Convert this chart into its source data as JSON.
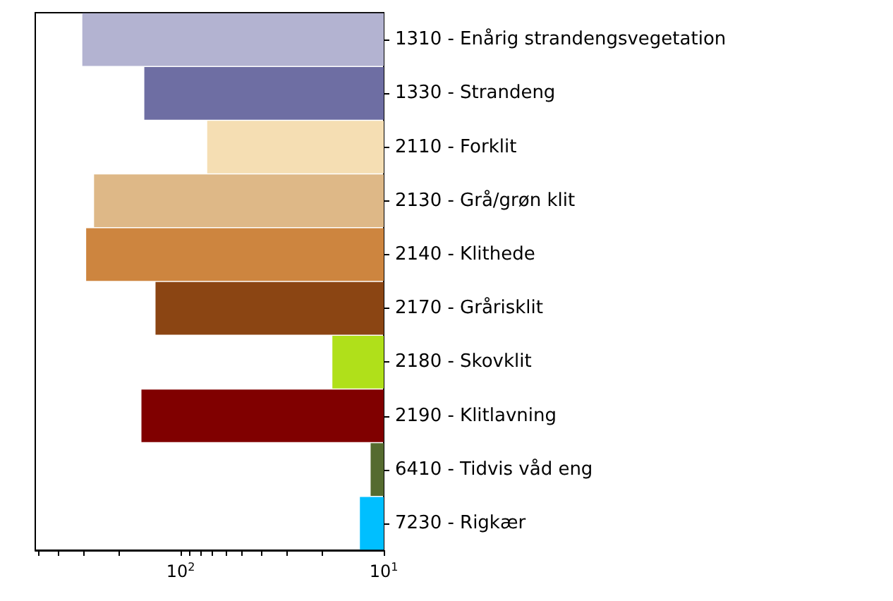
{
  "chart_data": {
    "type": "bar",
    "orientation": "horizontal",
    "log": "x",
    "categories": [
      "1310 - Enårig strandengsvegetation",
      "1330 - Strandeng",
      "2110 - Forklit",
      "2130 - Grå/grøn klit",
      "2140 - Klithede",
      "2170 - Grårisklit",
      "2180 - Skovklit",
      "2190 - Klitlavning",
      "6410 - Tidvis våd eng",
      "7230 - Rigkær"
    ],
    "values": [
      305,
      151,
      74,
      267,
      292,
      133,
      17.9,
      156,
      11.6,
      13.1
    ],
    "colors": [
      "#b3b3d1",
      "#6e6ea3",
      "#f5deb3",
      "#deb887",
      "#cd853f",
      "#8b4513",
      "#b0e01a",
      "#800000",
      "#556b2f",
      "#00bfff"
    ],
    "xlim": [
      520,
      10
    ],
    "xticks": [
      {
        "value": 500,
        "label": null
      },
      {
        "value": 400,
        "label": null
      },
      {
        "value": 300,
        "label": null
      },
      {
        "value": 200,
        "label": null
      },
      {
        "value": 100,
        "label": "10$^{2}$"
      },
      {
        "value": 90,
        "label": null
      },
      {
        "value": 80,
        "label": null
      },
      {
        "value": 70,
        "label": null
      },
      {
        "value": 60,
        "label": null
      },
      {
        "value": 50,
        "label": null
      },
      {
        "value": 40,
        "label": null
      },
      {
        "value": 30,
        "label": null
      },
      {
        "value": 20,
        "label": null
      },
      {
        "value": 10,
        "label": "10$^{1}$"
      }
    ],
    "grid": false
  }
}
